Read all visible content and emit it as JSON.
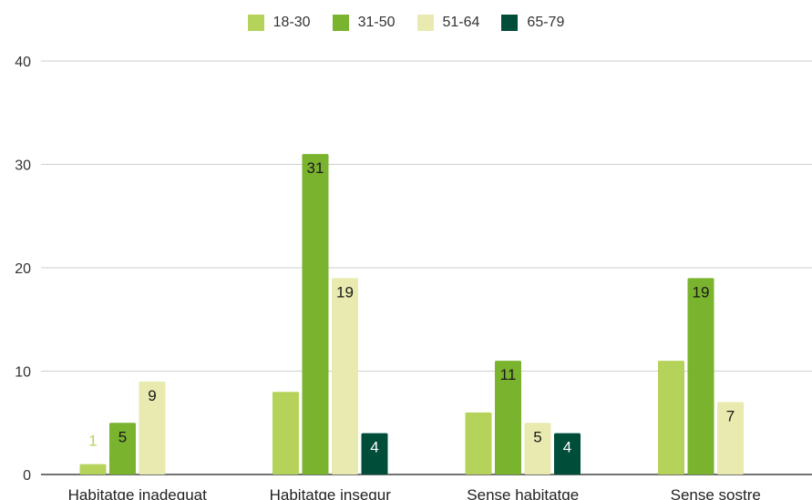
{
  "chart_data": {
    "type": "bar",
    "categories": [
      "Habitatge inadequat",
      "Habitatge insegur",
      "Sense habitatge",
      "Sense sostre"
    ],
    "series": [
      {
        "name": "18-30",
        "color": "#b5d35a",
        "values": [
          1,
          8,
          6,
          11
        ]
      },
      {
        "name": "31-50",
        "color": "#7ab32e",
        "values": [
          5,
          31,
          11,
          19
        ]
      },
      {
        "name": "51-64",
        "color": "#e8eab0",
        "values": [
          9,
          19,
          5,
          7
        ]
      },
      {
        "name": "65-79",
        "color": "#004d3a",
        "values": [
          null,
          4,
          4,
          null
        ]
      }
    ],
    "data_label_colors": [
      "#b5d35a",
      "#1a1a1a",
      "#1a1a1a",
      "#ffffff"
    ],
    "yticks": [
      "0",
      "10",
      "20",
      "30",
      "40"
    ],
    "ylim": [
      0,
      40
    ],
    "grid": true,
    "legend_position": "top-center"
  }
}
